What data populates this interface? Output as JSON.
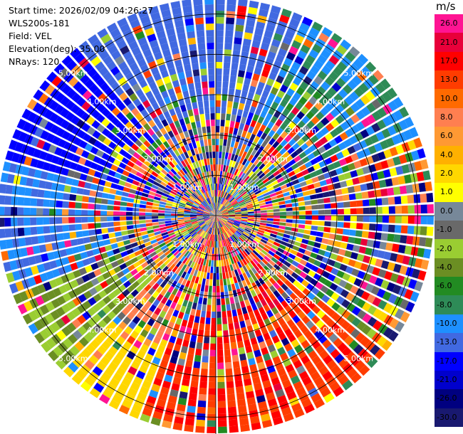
{
  "header": {
    "start_time": "Start time: 2026/02/09 04:26:27",
    "instrument": "WLS200s-181",
    "field": "Field: VEL",
    "elevation": "Elevation(deg): 35.00",
    "nrays": "NRays: 120"
  },
  "colorbar": {
    "unit": "m/s",
    "ticks": [
      "26.0",
      "21.0",
      "17.0",
      "13.0",
      "10.0",
      "8.0",
      "6.0",
      "4.0",
      "2.0",
      "1.0",
      "0.0",
      "-1.0",
      "-2.0",
      "-4.0",
      "-6.0",
      "-8.0",
      "-10.0",
      "-13.0",
      "-17.0",
      "-21.0",
      "-26.0",
      "-30.0"
    ],
    "colors": [
      "#ff1493",
      "#e8003a",
      "#ff0000",
      "#ff3c00",
      "#ff6a00",
      "#ff7f50",
      "#ff9933",
      "#ffb000",
      "#ffd700",
      "#ffff00",
      "#778899",
      "#696969",
      "#9acd32",
      "#6b8e23",
      "#228b22",
      "#2e8b57",
      "#1e90ff",
      "#4169e1",
      "#0000ff",
      "#0000cd",
      "#000080",
      "#191970"
    ]
  },
  "chart_data": {
    "type": "heatmap",
    "projection": "polar (PPI)",
    "field": "VEL",
    "units": "m/s",
    "nrays": 120,
    "elevation_deg": 35.0,
    "range_ring_labels": [
      "1.00km",
      "2.00km",
      "3.00km",
      "4.00km",
      "5.00km"
    ],
    "value_range": [
      -30,
      26
    ],
    "dominant_patterns": [
      {
        "sector": "north",
        "velocity_class": "-13.0 to -10.0"
      },
      {
        "sector": "west",
        "velocity_class": "-17.0 to -10.0"
      },
      {
        "sector": "south-west",
        "velocity_class": "-8.0 to -2.0"
      },
      {
        "sector": "south",
        "velocity_class": "13.0 to 21.0"
      },
      {
        "sector": "south-east",
        "velocity_class": "13.0 to 17.0"
      },
      {
        "sector": "east",
        "velocity_class": "mixed"
      }
    ]
  }
}
